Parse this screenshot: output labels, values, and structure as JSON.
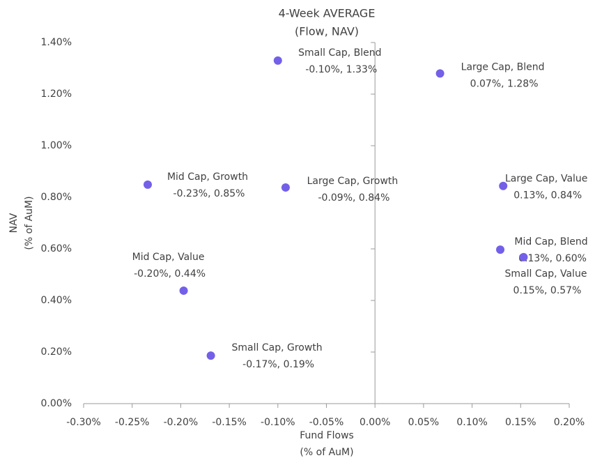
{
  "chart_data": {
    "type": "scatter",
    "title": [
      "4-Week AVERAGE",
      "(Flow, NAV)"
    ],
    "x_label": [
      "Fund Flows",
      "(% of AuM)"
    ],
    "y_label": [
      "NAV",
      "(% of AuM)"
    ],
    "color": "#7360e8",
    "point_names": [
      "Small Cap, Blend",
      "Large Cap, Blend",
      "Mid Cap, Growth",
      "Large Cap, Growth",
      "Large Cap, Value",
      "Mid Cap, Blend",
      "Small Cap, Value",
      "Mid Cap, Value",
      "Small Cap, Growth"
    ],
    "x": [
      -0.1,
      0.067,
      -0.234,
      -0.092,
      0.132,
      0.129,
      0.153,
      -0.197,
      -0.169
    ],
    "values": [
      1.33,
      1.28,
      0.849,
      0.838,
      0.844,
      0.597,
      0.568,
      0.438,
      0.186
    ],
    "value_labels": [
      "-0.10%, 1.33%",
      "0.07%, 1.28%",
      "-0.23%, 0.85%",
      "-0.09%, 0.84%",
      "0.13%, 0.84%",
      "0.13%, 0.60%",
      "0.15%, 0.57%",
      "-0.20%, 0.44%",
      "-0.17%, 0.19%"
    ],
    "xlim": [
      -0.3,
      0.2
    ],
    "xticks": [
      {
        "value": -0.3,
        "label": "-0.30%"
      },
      {
        "value": -0.25,
        "label": "-0.25%"
      },
      {
        "value": -0.2,
        "label": "-0.20%"
      },
      {
        "value": -0.15,
        "label": "-0.15%"
      },
      {
        "value": -0.1,
        "label": "-0.10%"
      },
      {
        "value": -0.05,
        "label": "-0.05%"
      },
      {
        "value": 0,
        "label": "0.00%"
      },
      {
        "value": 0.05,
        "label": "0.05%"
      },
      {
        "value": 0.1,
        "label": "0.10%"
      },
      {
        "value": 0.15,
        "label": "0.15%"
      },
      {
        "value": 0.2,
        "label": "0.20%"
      }
    ],
    "ylim": [
      0,
      1.4
    ],
    "yticks": [
      {
        "value": 0,
        "label": "0.00%"
      },
      {
        "value": 0.2,
        "label": "0.20%"
      },
      {
        "value": 0.4,
        "label": "0.40%"
      },
      {
        "value": 0.6,
        "label": "0.60%"
      },
      {
        "value": 0.8,
        "label": "0.80%"
      },
      {
        "value": 1.0,
        "label": "1.00%"
      },
      {
        "value": 1.2,
        "label": "1.20%"
      },
      {
        "value": 1.4,
        "label": "1.40%"
      }
    ]
  }
}
